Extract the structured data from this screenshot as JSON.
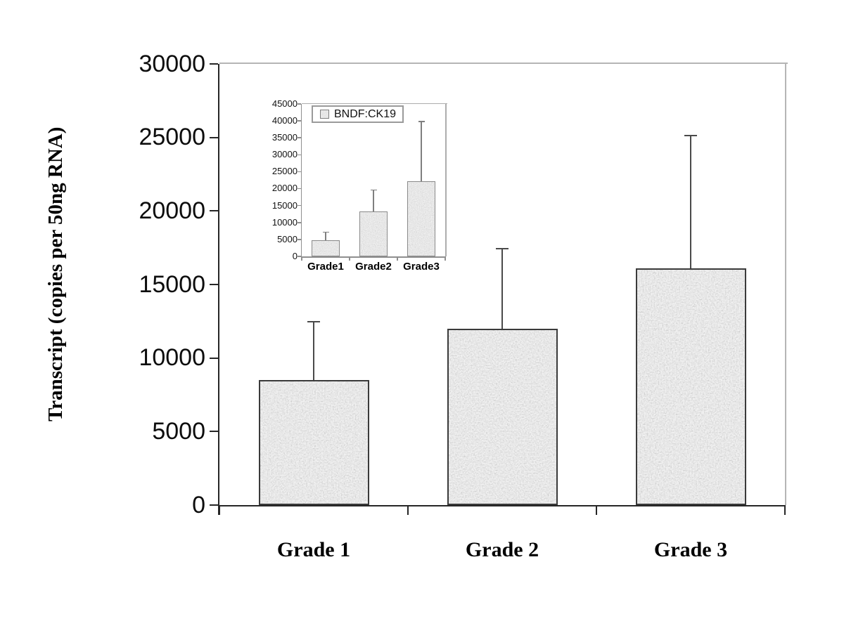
{
  "figure": {
    "description": "Bar chart of BNDF transcript levels by tumour grade with inset BNDF:CK19 ratio chart",
    "background": "#ffffff"
  },
  "chart_data": [
    {
      "id": "main",
      "type": "bar",
      "title": "",
      "categories": [
        "Grade 1",
        "Grade 2",
        "Grade 3"
      ],
      "values": [
        8500,
        12000,
        16100
      ],
      "error_upper": [
        3900,
        5400,
        9000
      ],
      "xlabel": "",
      "ylabel": "Transcript (copies per 50ng RNA)",
      "ylim": [
        0,
        30000
      ],
      "ytick_step": 5000,
      "ytick_labels": [
        "0",
        "5000",
        "10000",
        "15000",
        "20000",
        "25000",
        "30000"
      ],
      "grid": false,
      "legend_position": "none",
      "bar_texture": "speckled-gray-noise",
      "colors": {
        "axis": "#262626",
        "frame": "#b5b5b5",
        "bar_border": "#3a3a3a",
        "bar_base": "#cdcdcd",
        "error": "#4a4a4a",
        "text": "#0d0d0d"
      }
    },
    {
      "id": "inset",
      "type": "bar",
      "title": "",
      "categories": [
        "Grade1",
        "Grade2",
        "Grade3"
      ],
      "series": [
        {
          "name": "BNDF:CK19",
          "values": [
            4700,
            13300,
            22200
          ]
        }
      ],
      "error_upper": [
        2300,
        6100,
        17500
      ],
      "xlabel": "",
      "ylabel": "",
      "ylim": [
        0,
        45000
      ],
      "ytick_step": 5000,
      "ytick_labels": [
        "0",
        "5000",
        "10000",
        "15000",
        "20000",
        "25000",
        "30000",
        "35000",
        "40000",
        "45000"
      ],
      "grid": false,
      "legend_position": "top-left",
      "bar_texture": "speckled-gray-noise",
      "colors": {
        "axis": "#8f8f8f",
        "frame": "#adadad",
        "bar_border": "#8a8a8a",
        "bar_base": "#cfcfcf",
        "error": "#7f7f7f",
        "text": "#111111"
      }
    }
  ]
}
